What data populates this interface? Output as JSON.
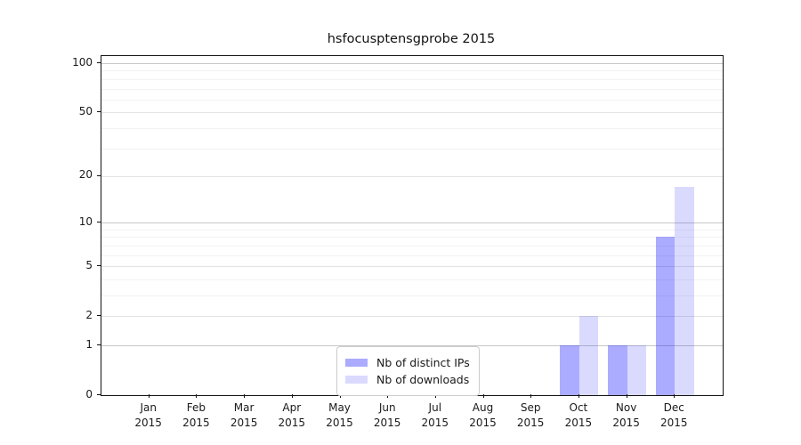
{
  "chart_data": {
    "type": "bar",
    "title": "hsfocusptensgprobe 2015",
    "categories": [
      "Jan",
      "Feb",
      "Mar",
      "Apr",
      "May",
      "Jun",
      "Jul",
      "Aug",
      "Sep",
      "Oct",
      "Nov",
      "Dec"
    ],
    "x_tick_year": "2015",
    "series": [
      {
        "name": "Nb of distinct IPs",
        "color": "rgba(10,10,255,0.34)",
        "values": [
          0,
          0,
          0,
          0,
          0,
          0,
          0,
          0,
          0,
          1,
          1,
          8
        ]
      },
      {
        "name": "Nb of downloads",
        "color": "rgba(10,10,255,0.15)",
        "values": [
          0,
          0,
          0,
          0,
          0,
          0,
          0,
          0,
          0,
          2,
          1,
          17
        ]
      }
    ],
    "xlabel": "",
    "ylabel": "",
    "y_axis": {
      "scale": "log1p",
      "ylim": [
        0,
        100
      ],
      "major_ticks": [
        0,
        1,
        2,
        5,
        10,
        20,
        50,
        100
      ],
      "decade_gridlines": [
        1,
        10,
        100
      ],
      "labeled_gridlines": [
        2,
        5,
        20,
        50
      ],
      "minor_gridlines": [
        3,
        4,
        6,
        7,
        8,
        9,
        30,
        40,
        60,
        70,
        80,
        90
      ]
    },
    "grid": true,
    "legend_position": "lower center",
    "colors": {
      "bar_distinct_ips": "#aaaaf6",
      "bar_downloads": "#dcdcfa",
      "gridline_decade": "#c8c8c8",
      "gridline_labeled": "#e3e3e3",
      "gridline_minor": "#f2f2f2",
      "axis": "#111111"
    }
  }
}
